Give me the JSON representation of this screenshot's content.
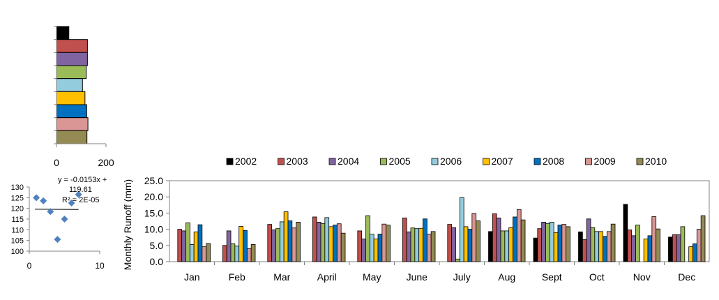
{
  "chart_data": [
    {
      "type": "bar",
      "orientation": "horizontal",
      "categories": [
        "2002",
        "2003",
        "2004",
        "2005",
        "2006",
        "2007",
        "2008",
        "2009",
        "2010"
      ],
      "values": [
        50,
        125,
        125,
        120,
        105,
        115,
        122,
        127,
        123
      ],
      "xlim": [
        0,
        200
      ],
      "xticks": [
        "0",
        "200"
      ],
      "colors": [
        "#000000",
        "#c0504d",
        "#8064a2",
        "#9bbb59",
        "#93cddd",
        "#ffc000",
        "#0070c0",
        "#d99694",
        "#948a54"
      ]
    },
    {
      "type": "scatter",
      "points": [
        [
          1,
          125
        ],
        [
          2,
          123.5
        ],
        [
          3,
          118.5
        ],
        [
          4,
          105.5
        ],
        [
          5,
          115
        ],
        [
          6,
          122.5
        ],
        [
          7,
          126.5
        ]
      ],
      "trendline": {
        "slope": -0.0153,
        "intercept": 119.61
      },
      "equation": "y = -0.0153x + 119.61",
      "r2": "R² = 2E-05",
      "xlim": [
        0,
        10
      ],
      "ylim": [
        100,
        130
      ],
      "xticks": [
        "0",
        "10"
      ],
      "yticks": [
        "100",
        "105",
        "110",
        "115",
        "120",
        "125",
        "130"
      ],
      "color": "#4f81bd"
    },
    {
      "type": "bar",
      "title": "",
      "xlabel": "",
      "ylabel": "Monthly  Runoff (mm)",
      "ylim": [
        0,
        25
      ],
      "yticks": [
        "0.0",
        "5.0",
        "10.0",
        "15.0",
        "20.0",
        "25.0"
      ],
      "categories": [
        "Jan",
        "Feb",
        "Mar",
        "April",
        "May",
        "June",
        "July",
        "Aug",
        "Sept",
        "Oct",
        "Nov",
        "Dec"
      ],
      "legend_position": "top",
      "series": [
        {
          "name": "2002",
          "color": "#000000",
          "values": [
            0,
            0,
            0,
            0,
            0,
            0,
            0,
            9.3,
            7.3,
            9.2,
            17.7,
            7.6
          ]
        },
        {
          "name": "2003",
          "color": "#c0504d",
          "values": [
            10.0,
            5.0,
            11.5,
            13.8,
            9.5,
            13.5,
            11.5,
            14.8,
            10.2,
            6.8,
            9.8,
            8.3
          ]
        },
        {
          "name": "2004",
          "color": "#8064a2",
          "values": [
            9.5,
            9.5,
            9.8,
            12.2,
            7.0,
            9.2,
            10.5,
            13.5,
            12.2,
            13.2,
            8.0,
            8.3
          ]
        },
        {
          "name": "2005",
          "color": "#9bbb59",
          "values": [
            12.0,
            5.5,
            10.2,
            11.8,
            14.2,
            10.4,
            0.8,
            9.5,
            11.8,
            10.5,
            11.3,
            10.8
          ]
        },
        {
          "name": "2006",
          "color": "#93cddd",
          "values": [
            5.3,
            4.8,
            12.3,
            13.6,
            8.5,
            10.2,
            19.8,
            9.5,
            12.2,
            9.3,
            0,
            0
          ]
        },
        {
          "name": "2007",
          "color": "#ffc000",
          "values": [
            9.2,
            10.9,
            15.4,
            10.8,
            7.0,
            10.3,
            10.8,
            10.5,
            9.0,
            9.3,
            7.0,
            4.6
          ]
        },
        {
          "name": "2008",
          "color": "#0070c0",
          "values": [
            11.4,
            9.6,
            12.6,
            11.3,
            8.5,
            13.2,
            10.0,
            13.8,
            11.3,
            7.8,
            8.0,
            5.5
          ]
        },
        {
          "name": "2009",
          "color": "#d99694",
          "values": [
            4.6,
            4.0,
            10.4,
            11.7,
            11.6,
            8.5,
            14.9,
            16.1,
            11.5,
            9.3,
            13.9,
            10.0
          ]
        },
        {
          "name": "2010",
          "color": "#948a54",
          "values": [
            5.6,
            5.3,
            12.2,
            8.8,
            11.3,
            9.3,
            12.6,
            12.9,
            10.8,
            11.6,
            10.1,
            14.2
          ]
        }
      ]
    }
  ]
}
